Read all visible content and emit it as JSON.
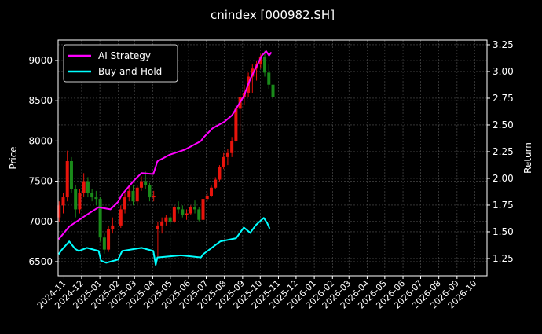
{
  "chart_data": {
    "type": "candlestick+line",
    "title": "cnindex [000982.SH]",
    "ylabel": "Price",
    "ylabel_right": "Return",
    "xlim": [
      "2024-10-22",
      "2026-10-22"
    ],
    "ylim": [
      6324,
      9254
    ],
    "ylim_right": [
      1.088,
      3.294
    ],
    "grid": true,
    "legend_position": "top-left",
    "x_ticks": [
      "2024-11",
      "2024-12",
      "2025-01",
      "2025-02",
      "2025-03",
      "2025-04",
      "2025-05",
      "2025-06",
      "2025-07",
      "2025-08",
      "2025-09",
      "2025-10",
      "2025-11",
      "2025-12",
      "2026-01",
      "2026-02",
      "2026-03",
      "2026-04",
      "2026-05",
      "2026-06",
      "2026-07",
      "2026-08",
      "2026-09",
      "2026-10"
    ],
    "y_ticks": [
      "6500",
      "7000",
      "7500",
      "8000",
      "8500",
      "9000"
    ],
    "y_ticks_right": [
      "1.25",
      "1.50",
      "1.75",
      "2.00",
      "2.25",
      "2.50",
      "2.75",
      "3.00",
      "3.25"
    ],
    "colors": {
      "up": "#e8140c",
      "down": "#1a8a1a",
      "ai_strategy": "#ff00ff",
      "buy_and_hold": "#00ffff",
      "grid": "#555555"
    },
    "candles_columns": [
      "date",
      "open",
      "high",
      "low",
      "close"
    ],
    "candles": [
      [
        "2024-10-21",
        7050,
        7250,
        7000,
        7200
      ],
      [
        "2024-10-28",
        7200,
        7350,
        7100,
        7300
      ],
      [
        "2024-11-04",
        7300,
        7880,
        7250,
        7750
      ],
      [
        "2024-11-11",
        7750,
        7800,
        7350,
        7400
      ],
      [
        "2024-11-18",
        7400,
        7450,
        7050,
        7150
      ],
      [
        "2024-11-25",
        7150,
        7400,
        7100,
        7350
      ],
      [
        "2024-12-02",
        7350,
        7600,
        7300,
        7500
      ],
      [
        "2024-12-09",
        7500,
        7550,
        7300,
        7350
      ],
      [
        "2024-12-16",
        7350,
        7400,
        7250,
        7300
      ],
      [
        "2024-12-23",
        7300,
        7380,
        7200,
        7280
      ],
      [
        "2024-12-30",
        7280,
        7300,
        6750,
        6800
      ],
      [
        "2025-01-06",
        6800,
        6850,
        6600,
        6650
      ],
      [
        "2025-01-13",
        6650,
        6950,
        6620,
        6900
      ],
      [
        "2025-01-20",
        6900,
        7050,
        6850,
        6950
      ],
      [
        "2025-02-03",
        6950,
        7200,
        6920,
        7150
      ],
      [
        "2025-02-10",
        7150,
        7350,
        7100,
        7300
      ],
      [
        "2025-02-17",
        7300,
        7450,
        7250,
        7380
      ],
      [
        "2025-02-24",
        7380,
        7450,
        7200,
        7250
      ],
      [
        "2025-03-03",
        7250,
        7450,
        7220,
        7420
      ],
      [
        "2025-03-10",
        7420,
        7560,
        7380,
        7500
      ],
      [
        "2025-03-17",
        7500,
        7620,
        7400,
        7450
      ],
      [
        "2025-03-24",
        7450,
        7480,
        7250,
        7300
      ],
      [
        "2025-03-31",
        7300,
        7380,
        7250,
        7320
      ],
      [
        "2025-04-07",
        6900,
        7000,
        6550,
        6950
      ],
      [
        "2025-04-14",
        6950,
        7050,
        6850,
        7000
      ],
      [
        "2025-04-21",
        7000,
        7080,
        6950,
        7050
      ],
      [
        "2025-04-28",
        7050,
        7100,
        6950,
        7000
      ],
      [
        "2025-05-05",
        7000,
        7200,
        6980,
        7180
      ],
      [
        "2025-05-12",
        7180,
        7250,
        7100,
        7150
      ],
      [
        "2025-05-19",
        7150,
        7200,
        7050,
        7080
      ],
      [
        "2025-05-26",
        7080,
        7150,
        7020,
        7100
      ],
      [
        "2025-06-02",
        7100,
        7200,
        7080,
        7180
      ],
      [
        "2025-06-09",
        7180,
        7260,
        7100,
        7150
      ],
      [
        "2025-06-16",
        7150,
        7180,
        7000,
        7020
      ],
      [
        "2025-06-23",
        7020,
        7300,
        7000,
        7280
      ],
      [
        "2025-06-30",
        7280,
        7350,
        7250,
        7320
      ],
      [
        "2025-07-07",
        7320,
        7450,
        7300,
        7420
      ],
      [
        "2025-07-14",
        7420,
        7550,
        7400,
        7520
      ],
      [
        "2025-07-21",
        7520,
        7700,
        7500,
        7680
      ],
      [
        "2025-07-28",
        7680,
        7850,
        7650,
        7800
      ],
      [
        "2025-08-04",
        7800,
        7900,
        7700,
        7850
      ],
      [
        "2025-08-11",
        7850,
        8050,
        7800,
        8000
      ],
      [
        "2025-08-18",
        8000,
        8450,
        7980,
        8400
      ],
      [
        "2025-08-25",
        8400,
        8650,
        8100,
        8550
      ],
      [
        "2025-09-01",
        8550,
        8700,
        8450,
        8600
      ],
      [
        "2025-09-08",
        8600,
        8850,
        8550,
        8800
      ],
      [
        "2025-09-15",
        8800,
        8950,
        8600,
        8900
      ],
      [
        "2025-09-22",
        8900,
        9000,
        8750,
        8950
      ],
      [
        "2025-09-29",
        8950,
        9080,
        8900,
        9050
      ],
      [
        "2025-10-06",
        9050,
        9120,
        8800,
        8850
      ],
      [
        "2025-10-13",
        8850,
        8950,
        8650,
        8700
      ],
      [
        "2025-10-20",
        8700,
        8750,
        8500,
        8550
      ]
    ],
    "series": [
      {
        "name": "AI Strategy",
        "axis": "right",
        "points": [
          [
            "2024-10-23",
            1.43
          ],
          [
            "2024-11-10",
            1.55
          ],
          [
            "2024-12-10",
            1.66
          ],
          [
            "2024-12-30",
            1.73
          ],
          [
            "2025-01-19",
            1.71
          ],
          [
            "2025-02-01",
            1.78
          ],
          [
            "2025-02-08",
            1.85
          ],
          [
            "2025-02-28",
            1.98
          ],
          [
            "2025-03-13",
            2.05
          ],
          [
            "2025-04-02",
            2.04
          ],
          [
            "2025-04-09",
            2.16
          ],
          [
            "2025-04-29",
            2.22
          ],
          [
            "2025-05-26",
            2.27
          ],
          [
            "2025-06-22",
            2.35
          ],
          [
            "2025-06-26",
            2.38
          ],
          [
            "2025-07-12",
            2.47
          ],
          [
            "2025-08-01",
            2.53
          ],
          [
            "2025-08-14",
            2.59
          ],
          [
            "2025-09-03",
            2.77
          ],
          [
            "2025-09-14",
            2.93
          ],
          [
            "2025-09-23",
            3.03
          ],
          [
            "2025-10-04",
            3.15
          ],
          [
            "2025-10-11",
            3.19
          ],
          [
            "2025-10-16",
            3.15
          ],
          [
            "2025-10-20",
            3.18
          ]
        ]
      },
      {
        "name": "Buy-and-Hold",
        "axis": "right",
        "points": [
          [
            "2024-10-23",
            1.29
          ],
          [
            "2024-10-28",
            1.33
          ],
          [
            "2024-11-10",
            1.41
          ],
          [
            "2024-11-20",
            1.34
          ],
          [
            "2024-11-26",
            1.32
          ],
          [
            "2024-12-10",
            1.35
          ],
          [
            "2024-12-30",
            1.32
          ],
          [
            "2025-01-03",
            1.23
          ],
          [
            "2025-01-12",
            1.21
          ],
          [
            "2025-02-01",
            1.24
          ],
          [
            "2025-02-08",
            1.32
          ],
          [
            "2025-03-13",
            1.35
          ],
          [
            "2025-04-02",
            1.32
          ],
          [
            "2025-04-06",
            1.19
          ],
          [
            "2025-04-09",
            1.26
          ],
          [
            "2025-05-19",
            1.28
          ],
          [
            "2025-06-22",
            1.26
          ],
          [
            "2025-06-26",
            1.29
          ],
          [
            "2025-07-25",
            1.41
          ],
          [
            "2025-08-21",
            1.44
          ],
          [
            "2025-09-03",
            1.54
          ],
          [
            "2025-09-14",
            1.49
          ],
          [
            "2025-09-23",
            1.56
          ],
          [
            "2025-10-07",
            1.63
          ],
          [
            "2025-10-13",
            1.58
          ],
          [
            "2025-10-17",
            1.53
          ]
        ]
      }
    ]
  }
}
